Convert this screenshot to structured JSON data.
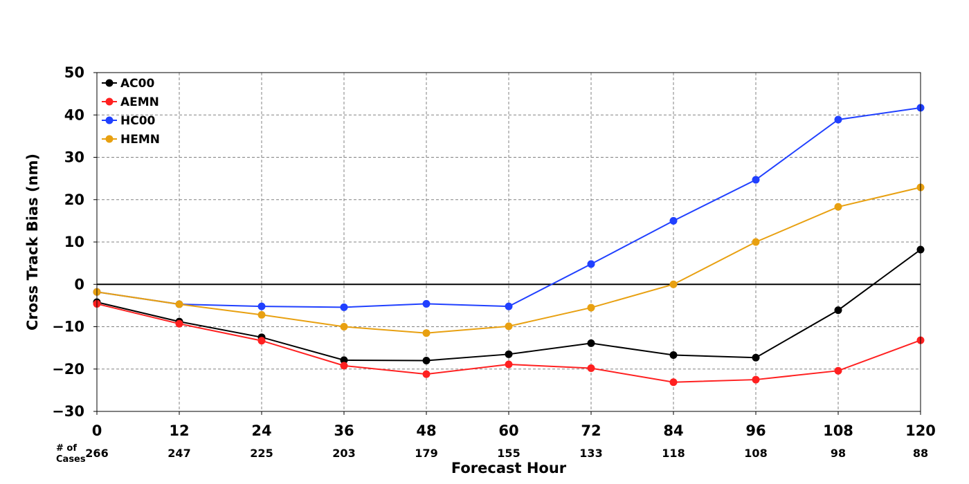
{
  "chart_data": {
    "type": "line",
    "x": [
      0,
      12,
      24,
      36,
      48,
      60,
      72,
      84,
      96,
      108,
      120
    ],
    "xticks": [
      "0",
      "12",
      "24",
      "36",
      "48",
      "60",
      "72",
      "84",
      "96",
      "108",
      "120"
    ],
    "yticks": [
      "−30",
      "−20",
      "−10",
      "0",
      "10",
      "20",
      "30",
      "40",
      "50"
    ],
    "ytick_values": [
      -30,
      -20,
      -10,
      0,
      10,
      20,
      30,
      40,
      50
    ],
    "xlabel": "Forecast Hour",
    "ylabel": "Cross Track Bias (nm)",
    "xlim": [
      0,
      120
    ],
    "ylim": [
      -30,
      50
    ],
    "grid": true,
    "grid_style": "dashed",
    "zero_line": true,
    "legend_position": "top-left",
    "cases_title_line1": "# of",
    "cases_title_line2": "Cases",
    "cases": [
      "266",
      "247",
      "225",
      "203",
      "179",
      "155",
      "133",
      "118",
      "108",
      "98",
      "88"
    ],
    "series": [
      {
        "name": "AC00",
        "color": "#000000",
        "values": [
          -4.2,
          -8.8,
          -12.5,
          -17.9,
          -18.0,
          -16.5,
          -13.9,
          -16.7,
          -17.3,
          -6.1,
          8.2
        ]
      },
      {
        "name": "AEMN",
        "color": "#ff2020",
        "values": [
          -4.6,
          -9.3,
          -13.3,
          -19.2,
          -21.2,
          -18.9,
          -19.8,
          -23.1,
          -22.5,
          -20.4,
          -13.2
        ]
      },
      {
        "name": "HC00",
        "color": "#2040ff",
        "values": [
          -1.8,
          -4.7,
          -5.2,
          -5.4,
          -4.6,
          -5.2,
          4.8,
          15.0,
          24.7,
          38.9,
          41.7
        ]
      },
      {
        "name": "HEMN",
        "color": "#e8a010",
        "values": [
          -1.8,
          -4.7,
          -7.2,
          -10.0,
          -11.5,
          -9.9,
          -5.5,
          0.0,
          10.0,
          18.3,
          22.9
        ]
      }
    ]
  }
}
